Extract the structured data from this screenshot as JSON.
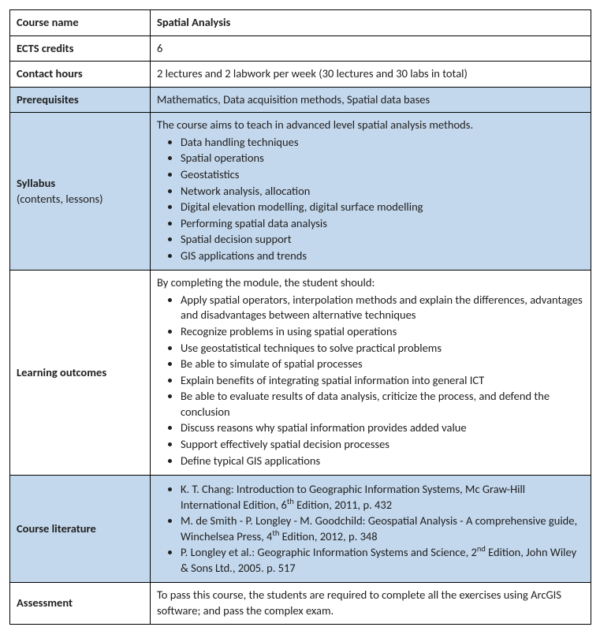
{
  "colors": {
    "row_highlight": "#c4d8ed",
    "border": "#000000",
    "text": "#202020",
    "background": "#ffffff"
  },
  "labels": {
    "course_name": "Course name",
    "ects": "ECTS credits",
    "contact": "Contact hours",
    "prereq": "Prerequisites",
    "syllabus": "Syllabus",
    "syllabus_sub": "(contents, lessons)",
    "outcomes": "Learning outcomes",
    "literature": "Course literature",
    "assessment": "Assessment"
  },
  "values": {
    "course_name": "Spatial Analysis",
    "ects": "6",
    "contact": "2 lectures and 2 labwork per week (30 lectures and 30 labs in total)",
    "prereq": "Mathematics, Data acquisition methods, Spatial data bases",
    "syllabus_intro": "The course aims to teach in advanced level spatial analysis methods.",
    "syllabus_items": [
      "Data handling techniques",
      "Spatial operations",
      "Geostatistics",
      "Network analysis, allocation",
      "Digital elevation modelling, digital surface modelling",
      "Performing spatial data analysis",
      "Spatial decision support",
      "GIS applications and trends"
    ],
    "outcomes_intro": "By completing the module, the student should:",
    "outcomes_items": [
      "Apply spatial operators, interpolation methods and explain the differences, advantages and disadvantages between alternative techniques",
      "Recognize problems in using spatial operations",
      "Use geostatistical techniques to solve practical problems",
      "Be able to simulate of spatial processes",
      "Explain benefits of integrating spatial information into general ICT",
      "Be able to evaluate results of data analysis, criticize the process, and defend the conclusion",
      "Discuss reasons why spatial information provides added value",
      "Support effectively spatial decision processes",
      "Define typical GIS applications"
    ],
    "literature_items_html": [
      "K. T. Chang: Introduction to Geographic Information Systems, Mc Graw-Hill International Edition, 6<span class=\"sup\">th</span> Edition, 2011, p. 432",
      "M. de Smith - P. Longley - M. Goodchild: Geospatial Analysis - A comprehensive guide, Winchelsea Press, 4<span class=\"sup\">th</span> Edition, 2012, p. 348",
      "P. Longley et al.: Geographic Information Systems and Science, 2<span class=\"sup\">nd</span> Edition, John Wiley & Sons Ltd., 2005. p. 517"
    ],
    "assessment": "To pass this course, the students are required to complete all the exercises using ArcGIS software; and pass the complex exam."
  }
}
